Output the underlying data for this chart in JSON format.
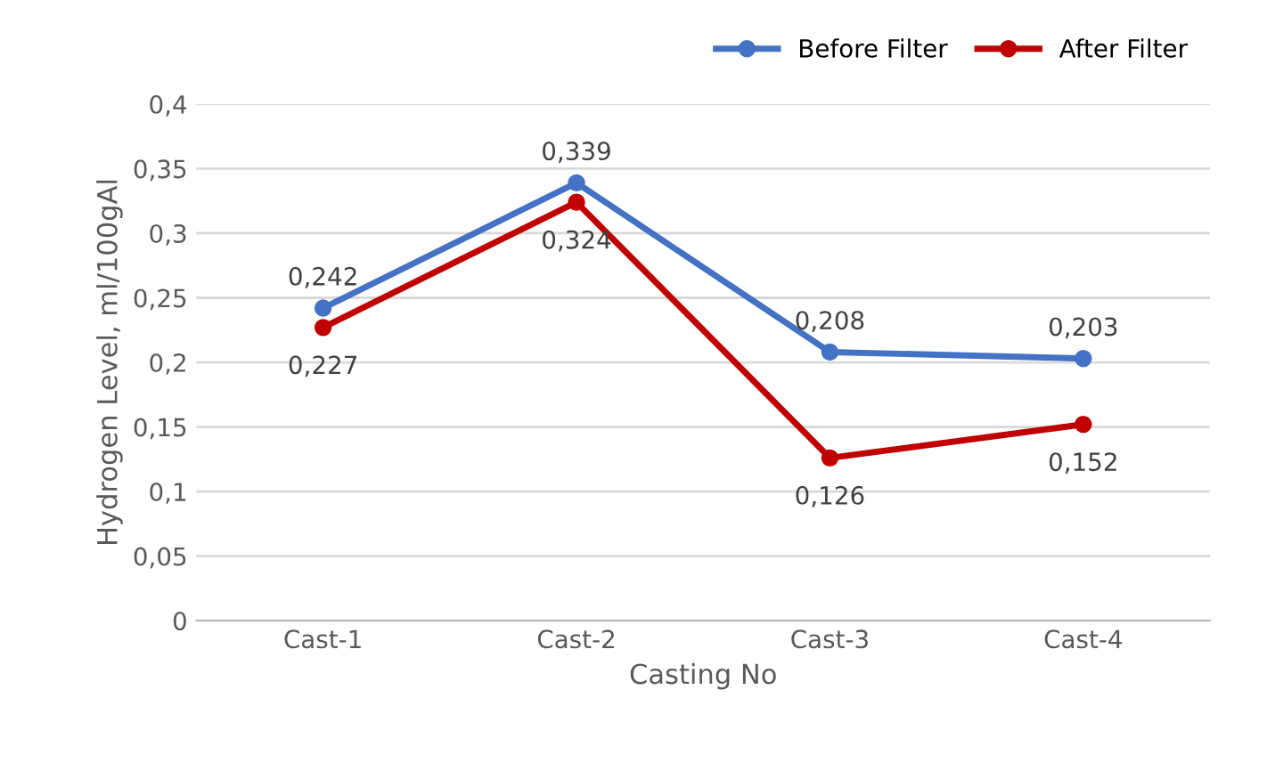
{
  "chart_data": {
    "type": "line",
    "xlabel": "Casting No",
    "ylabel": "Hydrogen Level, ml/100gAl",
    "categories": [
      "Cast-1",
      "Cast-2",
      "Cast-3",
      "Cast-4"
    ],
    "series": [
      {
        "name": "Before Filter",
        "color": "#4472c4",
        "values": [
          0.242,
          0.339,
          0.208,
          0.203
        ],
        "value_labels": [
          "0,242",
          "0,339",
          "0,208",
          "0,203"
        ]
      },
      {
        "name": "After Filter",
        "color": "#c00000",
        "values": [
          0.227,
          0.324,
          0.126,
          0.152
        ],
        "value_labels": [
          "0,227",
          "0,324",
          "0,126",
          "0,152"
        ]
      }
    ],
    "ylim": [
      0,
      0.4
    ],
    "yticks": [
      {
        "value": 0,
        "label": "0"
      },
      {
        "value": 0.05,
        "label": "0,05"
      },
      {
        "value": 0.1,
        "label": "0,1"
      },
      {
        "value": 0.15,
        "label": "0,15"
      },
      {
        "value": 0.2,
        "label": "0,2"
      },
      {
        "value": 0.25,
        "label": "0,25"
      },
      {
        "value": 0.3,
        "label": "0,3"
      },
      {
        "value": 0.35,
        "label": "0,35"
      },
      {
        "value": 0.4,
        "label": "0,4"
      }
    ],
    "grid": "y",
    "legend": "top right",
    "marker": "circle",
    "line_style": "solid"
  }
}
